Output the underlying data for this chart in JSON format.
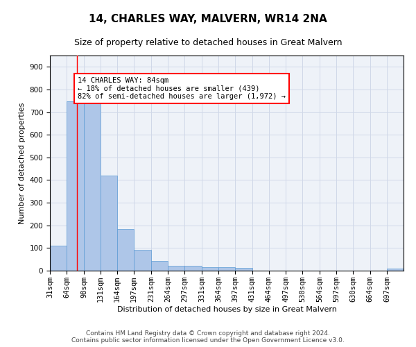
{
  "title": "14, CHARLES WAY, MALVERN, WR14 2NA",
  "subtitle": "Size of property relative to detached houses in Great Malvern",
  "xlabel": "Distribution of detached houses by size in Great Malvern",
  "ylabel": "Number of detached properties",
  "footer_line1": "Contains HM Land Registry data © Crown copyright and database right 2024.",
  "footer_line2": "Contains public sector information licensed under the Open Government Licence v3.0.",
  "bin_labels": [
    "31sqm",
    "64sqm",
    "98sqm",
    "131sqm",
    "164sqm",
    "197sqm",
    "231sqm",
    "264sqm",
    "297sqm",
    "331sqm",
    "364sqm",
    "397sqm",
    "431sqm",
    "464sqm",
    "497sqm",
    "530sqm",
    "564sqm",
    "597sqm",
    "630sqm",
    "664sqm",
    "697sqm"
  ],
  "bar_values": [
    110,
    748,
    748,
    420,
    185,
    93,
    42,
    20,
    20,
    16,
    14,
    12,
    0,
    0,
    0,
    0,
    0,
    0,
    0,
    0,
    8
  ],
  "bar_color": "#aec6e8",
  "bar_edge_color": "#5b9bd5",
  "grid_color": "#d0d8e8",
  "background_color": "#eef2f8",
  "red_line_x": 84,
  "bin_edges": [
    31,
    64,
    98,
    131,
    164,
    197,
    231,
    264,
    297,
    331,
    364,
    397,
    431,
    464,
    497,
    530,
    564,
    597,
    630,
    664,
    697,
    730
  ],
  "annotation_text": "14 CHARLES WAY: 84sqm\n← 18% of detached houses are smaller (439)\n82% of semi-detached houses are larger (1,972) →",
  "annotation_box_color": "white",
  "annotation_border_color": "red",
  "ylim": [
    0,
    950
  ],
  "yticks": [
    0,
    100,
    200,
    300,
    400,
    500,
    600,
    700,
    800,
    900
  ],
  "title_fontsize": 11,
  "subtitle_fontsize": 9,
  "axis_label_fontsize": 8,
  "tick_fontsize": 7.5,
  "annotation_fontsize": 7.5,
  "footer_fontsize": 6.5
}
